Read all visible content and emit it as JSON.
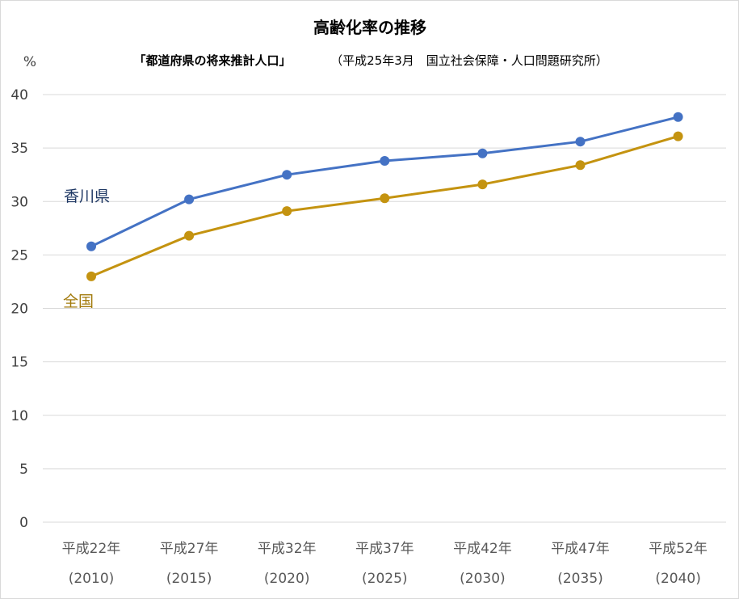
{
  "chart_data": {
    "type": "line",
    "title": "高齢化率の推移",
    "subtitle_source": "「都道府県の将来推計人口」",
    "subtitle_note": "（平成25年3月　国立社会保障・人口問題研究所）",
    "ylabel": "%",
    "ylim": [
      0,
      40
    ],
    "yticks": [
      0,
      5,
      10,
      15,
      20,
      25,
      30,
      35,
      40
    ],
    "grid": true,
    "categories": [
      "平成22年",
      "平成27年",
      "平成32年",
      "平成37年",
      "平成42年",
      "平成47年",
      "平成52年"
    ],
    "categories_sub": [
      "(2010)",
      "(2015)",
      "(2020)",
      "(2025)",
      "(2030)",
      "(2035)",
      "(2040)"
    ],
    "series": [
      {
        "name": "香川県",
        "color": "#4472c4",
        "values": [
          25.8,
          30.2,
          32.5,
          33.8,
          34.5,
          35.6,
          37.9
        ]
      },
      {
        "name": "全国",
        "color": "#c49310",
        "values": [
          23.0,
          26.8,
          29.1,
          30.3,
          31.6,
          33.4,
          36.1
        ]
      }
    ]
  }
}
